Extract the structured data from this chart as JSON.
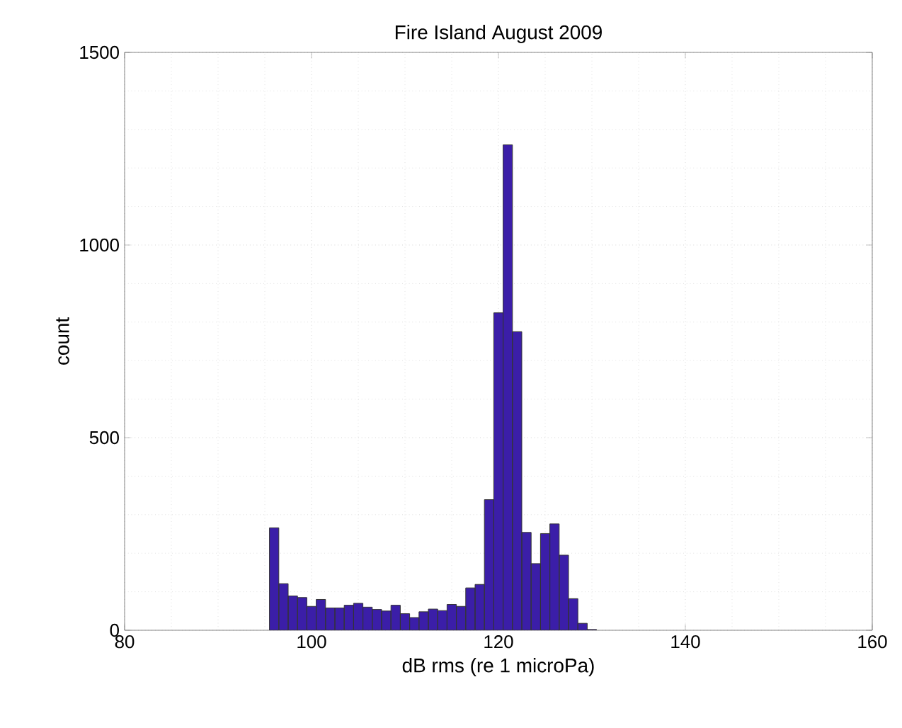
{
  "chart_data": {
    "type": "histogram",
    "title": "Fire Island August 2009",
    "xlabel": "dB rms (re 1 microPa)",
    "ylabel": "count",
    "bins": [
      95.5,
      96.5,
      97.5,
      98.5,
      99.5,
      100.5,
      101.5,
      102.5,
      103.5,
      104.5,
      105.5,
      106.5,
      107.5,
      108.5,
      109.5,
      110.5,
      111.5,
      112.5,
      113.5,
      114.5,
      115.5,
      116.5,
      117.5,
      118.5,
      119.5,
      120.5,
      121.5,
      122.5,
      123.5,
      124.5,
      125.5,
      126.5,
      127.5,
      128.5,
      129.5,
      130.5
    ],
    "values": [
      266,
      121,
      89,
      85,
      62,
      80,
      58,
      58,
      65,
      70,
      60,
      54,
      50,
      65,
      43,
      33,
      48,
      55,
      51,
      67,
      62,
      110,
      119,
      339,
      824,
      1260,
      775,
      254,
      173,
      251,
      276,
      195,
      82,
      18,
      2
    ],
    "color": "#3b1ea8",
    "xlim": [
      80,
      160
    ],
    "xticks": [
      80,
      100,
      120,
      140,
      160
    ],
    "ylim": [
      0,
      1500
    ],
    "yticks": [
      0,
      500,
      1000,
      1500
    ],
    "grid": true
  }
}
